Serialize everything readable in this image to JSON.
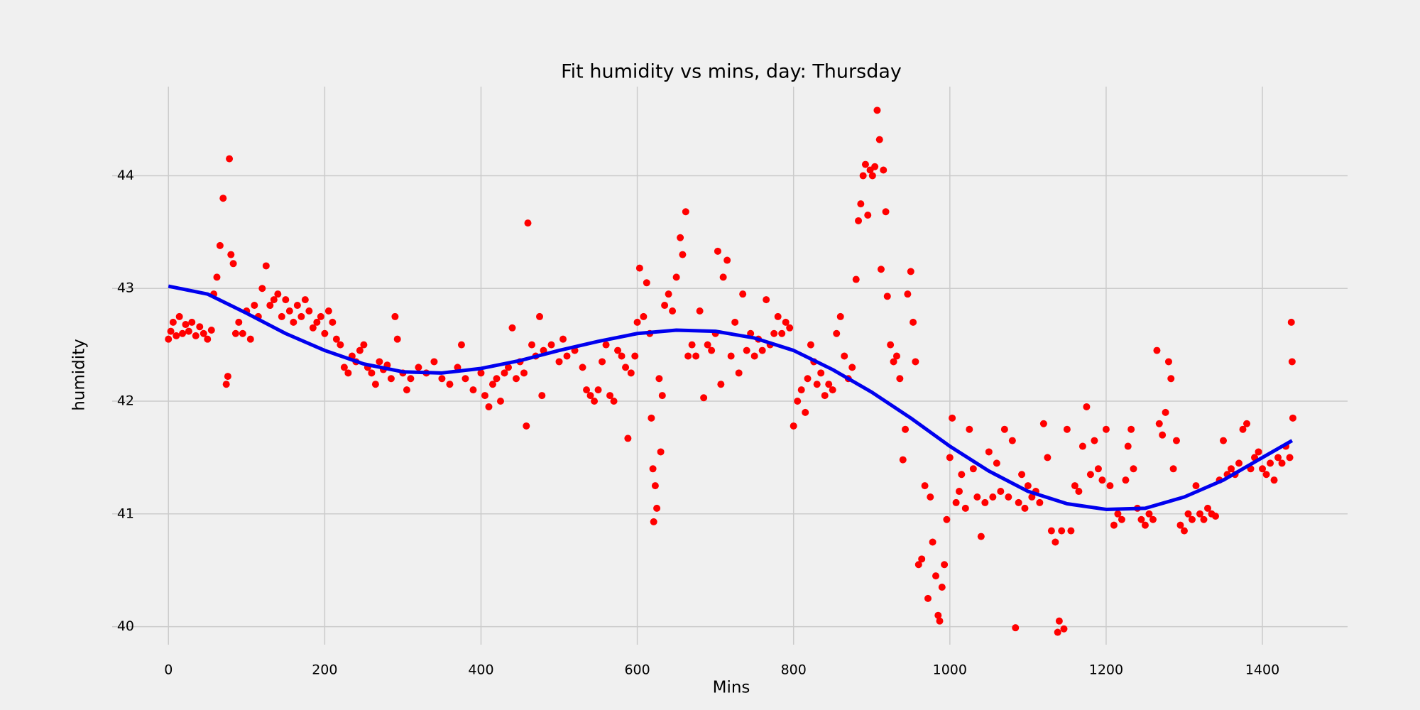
{
  "chart_data": {
    "type": "scatter",
    "title": "Fit humidity vs mins, day: Thursday",
    "x_label": "Mins",
    "y_label": "humidity",
    "xlim": [
      -72,
      1509
    ],
    "ylim": [
      39.84,
      44.79
    ],
    "xticks": [
      0,
      200,
      400,
      600,
      800,
      1000,
      1200,
      1400
    ],
    "yticks": [
      40,
      41,
      42,
      43,
      44
    ],
    "grid": true,
    "series": [
      {
        "type": "scatter",
        "color": "#ff0000",
        "x": [
          0,
          3,
          6,
          10,
          14,
          18,
          22,
          26,
          30,
          35,
          40,
          45,
          50,
          55,
          58,
          62,
          66,
          70,
          74,
          76,
          78,
          80,
          83,
          86,
          90,
          95,
          100,
          105,
          110,
          115,
          120,
          125,
          130,
          135,
          140,
          145,
          150,
          155,
          160,
          165,
          170,
          175,
          180,
          185,
          190,
          195,
          200,
          205,
          210,
          215,
          220,
          225,
          230,
          235,
          240,
          245,
          250,
          255,
          260,
          265,
          270,
          275,
          280,
          285,
          290,
          293,
          300,
          305,
          310,
          320,
          330,
          340,
          350,
          360,
          370,
          375,
          380,
          390,
          400,
          405,
          410,
          415,
          420,
          425,
          430,
          435,
          440,
          445,
          450,
          455,
          458,
          460,
          465,
          470,
          475,
          478,
          480,
          490,
          500,
          505,
          510,
          520,
          530,
          535,
          540,
          545,
          550,
          555,
          560,
          565,
          570,
          575,
          580,
          585,
          588,
          592,
          597,
          600,
          603,
          608,
          612,
          616,
          618,
          620,
          621,
          623,
          625,
          628,
          630,
          632,
          635,
          640,
          645,
          650,
          655,
          658,
          662,
          665,
          670,
          675,
          680,
          685,
          690,
          695,
          700,
          703,
          707,
          710,
          715,
          720,
          725,
          730,
          735,
          740,
          745,
          750,
          755,
          760,
          765,
          770,
          775,
          780,
          785,
          790,
          795,
          800,
          805,
          810,
          815,
          818,
          822,
          826,
          830,
          835,
          840,
          845,
          850,
          855,
          860,
          865,
          870,
          875,
          880,
          883,
          886,
          889,
          892,
          895,
          898,
          901,
          904,
          907,
          910,
          912,
          915,
          918,
          920,
          924,
          928,
          932,
          936,
          940,
          943,
          946,
          950,
          953,
          956,
          960,
          964,
          968,
          972,
          975,
          978,
          982,
          985,
          987,
          990,
          993,
          996,
          1000,
          1003,
          1008,
          1012,
          1015,
          1020,
          1025,
          1030,
          1035,
          1040,
          1045,
          1050,
          1055,
          1060,
          1065,
          1070,
          1075,
          1080,
          1084,
          1088,
          1092,
          1096,
          1100,
          1105,
          1110,
          1115,
          1120,
          1125,
          1130,
          1135,
          1138,
          1140,
          1143,
          1146,
          1150,
          1155,
          1160,
          1165,
          1170,
          1175,
          1180,
          1185,
          1190,
          1195,
          1200,
          1205,
          1210,
          1215,
          1220,
          1225,
          1228,
          1232,
          1235,
          1240,
          1245,
          1250,
          1255,
          1260,
          1265,
          1268,
          1272,
          1276,
          1280,
          1283,
          1286,
          1290,
          1295,
          1300,
          1305,
          1310,
          1315,
          1320,
          1325,
          1330,
          1335,
          1340,
          1345,
          1350,
          1355,
          1360,
          1365,
          1370,
          1375,
          1380,
          1385,
          1390,
          1395,
          1400,
          1405,
          1410,
          1415,
          1420,
          1425,
          1430,
          1435,
          1437,
          1438,
          1439
        ],
        "values": [
          42.55,
          42.62,
          42.7,
          42.58,
          42.75,
          42.6,
          42.68,
          42.62,
          42.7,
          42.58,
          42.66,
          42.6,
          42.55,
          42.63,
          42.95,
          43.1,
          43.38,
          43.8,
          42.15,
          42.22,
          44.15,
          43.3,
          43.22,
          42.6,
          42.7,
          42.6,
          42.8,
          42.55,
          42.85,
          42.75,
          43.0,
          43.2,
          42.85,
          42.9,
          42.95,
          42.75,
          42.9,
          42.8,
          42.7,
          42.85,
          42.75,
          42.9,
          42.8,
          42.65,
          42.7,
          42.75,
          42.6,
          42.8,
          42.7,
          42.55,
          42.5,
          42.3,
          42.25,
          42.4,
          42.35,
          42.45,
          42.5,
          42.3,
          42.25,
          42.15,
          42.35,
          42.28,
          42.32,
          42.2,
          42.75,
          42.55,
          42.25,
          42.1,
          42.2,
          42.3,
          42.25,
          42.35,
          42.2,
          42.15,
          42.3,
          42.5,
          42.2,
          42.1,
          42.25,
          42.05,
          41.95,
          42.15,
          42.2,
          42.0,
          42.25,
          42.3,
          42.65,
          42.2,
          42.35,
          42.25,
          41.78,
          43.58,
          42.5,
          42.4,
          42.75,
          42.05,
          42.45,
          42.5,
          42.35,
          42.55,
          42.4,
          42.45,
          42.3,
          42.1,
          42.05,
          42.0,
          42.1,
          42.35,
          42.5,
          42.05,
          42.0,
          42.45,
          42.4,
          42.3,
          41.67,
          42.25,
          42.4,
          42.7,
          43.18,
          42.75,
          43.05,
          42.6,
          41.85,
          41.4,
          40.93,
          41.25,
          41.05,
          42.2,
          41.55,
          42.05,
          42.85,
          42.95,
          42.8,
          43.1,
          43.45,
          43.3,
          43.68,
          42.4,
          42.5,
          42.4,
          42.8,
          42.03,
          42.5,
          42.45,
          42.6,
          43.33,
          42.15,
          43.1,
          43.25,
          42.4,
          42.7,
          42.25,
          42.95,
          42.45,
          42.6,
          42.4,
          42.55,
          42.45,
          42.9,
          42.5,
          42.6,
          42.75,
          42.6,
          42.7,
          42.65,
          41.78,
          42.0,
          42.1,
          41.9,
          42.2,
          42.5,
          42.35,
          42.15,
          42.25,
          42.05,
          42.15,
          42.1,
          42.6,
          42.75,
          42.4,
          42.2,
          42.3,
          43.08,
          43.6,
          43.75,
          44.0,
          44.1,
          43.65,
          44.05,
          44.0,
          44.08,
          44.58,
          44.32,
          43.17,
          44.05,
          43.68,
          42.93,
          42.5,
          42.35,
          42.4,
          42.2,
          41.48,
          41.75,
          42.95,
          43.15,
          42.7,
          42.35,
          40.55,
          40.6,
          41.25,
          40.25,
          41.15,
          40.75,
          40.45,
          40.1,
          40.05,
          40.35,
          40.55,
          40.95,
          41.5,
          41.85,
          41.1,
          41.2,
          41.35,
          41.05,
          41.75,
          41.4,
          41.15,
          40.8,
          41.1,
          41.55,
          41.15,
          41.45,
          41.2,
          41.75,
          41.15,
          41.65,
          39.99,
          41.1,
          41.35,
          41.05,
          41.25,
          41.15,
          41.2,
          41.1,
          41.8,
          41.5,
          40.85,
          40.75,
          39.95,
          40.05,
          40.85,
          39.98,
          41.75,
          40.85,
          41.25,
          41.2,
          41.6,
          41.95,
          41.35,
          41.65,
          41.4,
          41.3,
          41.75,
          41.25,
          40.9,
          41.0,
          40.95,
          41.3,
          41.6,
          41.75,
          41.4,
          41.05,
          40.95,
          40.9,
          41.0,
          40.95,
          42.45,
          41.8,
          41.7,
          41.9,
          42.35,
          42.2,
          41.4,
          41.65,
          40.9,
          40.85,
          41.0,
          40.95,
          41.25,
          41.0,
          40.95,
          41.05,
          41.0,
          40.98,
          41.3,
          41.65,
          41.35,
          41.4,
          41.35,
          41.45,
          41.75,
          41.8,
          41.4,
          41.5,
          41.55,
          41.4,
          41.35,
          41.45,
          41.3,
          41.5,
          41.45,
          41.6,
          41.5,
          42.7,
          42.35,
          41.85
        ]
      },
      {
        "type": "line",
        "color": "#0000ee",
        "x": [
          0,
          50,
          100,
          150,
          200,
          250,
          300,
          350,
          400,
          450,
          500,
          550,
          600,
          650,
          700,
          750,
          800,
          850,
          900,
          950,
          1000,
          1050,
          1100,
          1150,
          1200,
          1250,
          1300,
          1350,
          1400,
          1438
        ],
        "values": [
          43.02,
          42.95,
          42.78,
          42.6,
          42.45,
          42.33,
          42.26,
          42.25,
          42.29,
          42.36,
          42.45,
          42.53,
          42.6,
          42.63,
          42.62,
          42.56,
          42.45,
          42.28,
          42.08,
          41.85,
          41.6,
          41.38,
          41.2,
          41.09,
          41.04,
          41.05,
          41.15,
          41.3,
          41.5,
          41.65
        ]
      }
    ]
  }
}
